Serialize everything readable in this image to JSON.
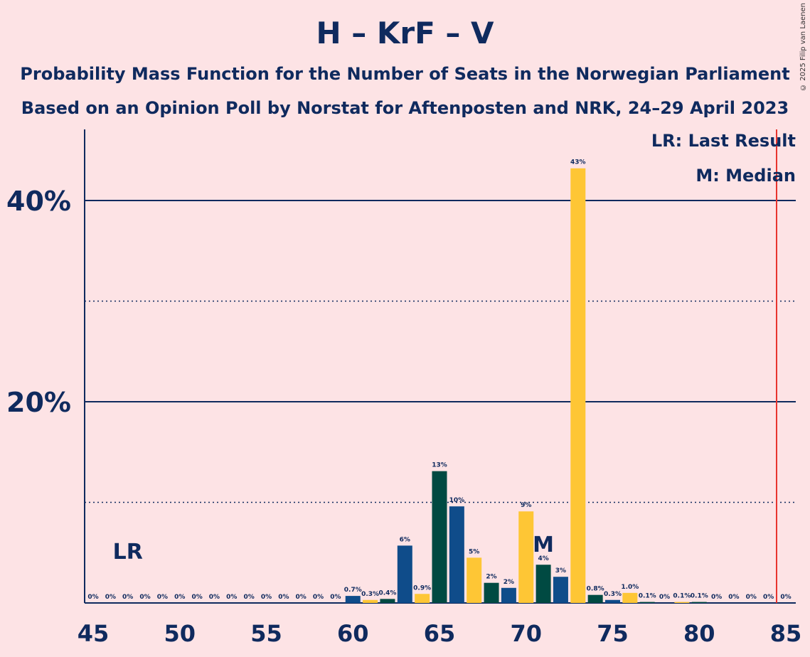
{
  "title": "H – KrF – V",
  "subtitle1": "Probability Mass Function for the Number of Seats in the Norwegian Parliament",
  "subtitle2": "Based on an Opinion Poll by Norstat for Aftenposten and NRK, 24–29 April 2023",
  "copyright": "© 2025 Filip van Laenen",
  "legend": {
    "lr": "LR: Last Result",
    "m": "M: Median"
  },
  "colors": {
    "background": "#fde3e5",
    "navy": "#0f2a5e",
    "blue": "#0f4c8a",
    "dark_green": "#004a42",
    "yellow": "#fec635",
    "majority_line": "#e8342e"
  },
  "chart_data": {
    "type": "bar",
    "x": [
      45,
      46,
      47,
      48,
      49,
      50,
      51,
      52,
      53,
      54,
      55,
      56,
      57,
      58,
      59,
      60,
      61,
      62,
      63,
      64,
      65,
      66,
      67,
      68,
      69,
      70,
      71,
      72,
      73,
      74,
      75,
      76,
      77,
      78,
      79,
      80,
      81,
      82,
      83,
      84,
      85
    ],
    "values": [
      0,
      0,
      0,
      0,
      0,
      0,
      0,
      0,
      0,
      0,
      0,
      0,
      0,
      0,
      0,
      0.7,
      0.3,
      0.4,
      5.7,
      0.9,
      13.1,
      9.6,
      4.5,
      2.0,
      1.5,
      9.1,
      3.8,
      2.6,
      43.2,
      0.8,
      0.3,
      1.0,
      0.1,
      0.0,
      0.1,
      0.1,
      0,
      0,
      0,
      0,
      0
    ],
    "labels": [
      "0%",
      "0%",
      "0%",
      "0%",
      "0%",
      "0%",
      "0%",
      "0%",
      "0%",
      "0%",
      "0%",
      "0%",
      "0%",
      "0%",
      "0%",
      "0.7%",
      "0.3%",
      "0.4%",
      "6%",
      "0.9%",
      "13%",
      "10%",
      "5%",
      "2%",
      "2%",
      "9%",
      "4%",
      "3%",
      "43%",
      "0.8%",
      "0.3%",
      "1.0%",
      "0.1%",
      "0%",
      "0.1%",
      "0.1%",
      "0%",
      "0%",
      "0%",
      "0%",
      "0%"
    ],
    "bar_colors": [
      "blue",
      "blue",
      "blue",
      "blue",
      "blue",
      "blue",
      "blue",
      "blue",
      "blue",
      "blue",
      "blue",
      "blue",
      "blue",
      "blue",
      "blue",
      "blue",
      "yellow",
      "dark_green",
      "blue",
      "yellow",
      "dark_green",
      "blue",
      "yellow",
      "dark_green",
      "blue",
      "yellow",
      "dark_green",
      "blue",
      "yellow",
      "dark_green",
      "blue",
      "yellow",
      "dark_green",
      "blue",
      "yellow",
      "dark_green",
      "blue",
      "yellow",
      "dark_green",
      "blue",
      "yellow"
    ],
    "xticks": [
      "45",
      "50",
      "55",
      "60",
      "65",
      "70",
      "75",
      "80",
      "85"
    ],
    "yticks": [
      "20%",
      "40%"
    ],
    "ylim": [
      0,
      47
    ],
    "xlim": [
      44.5,
      85.5
    ],
    "last_result_seat": 47,
    "last_result_label": "LR",
    "median_seat": 71,
    "median_label": "M",
    "majority_seat": 85,
    "solid_gridlines": [
      20,
      40
    ],
    "dotted_gridlines": [
      10,
      30
    ]
  }
}
